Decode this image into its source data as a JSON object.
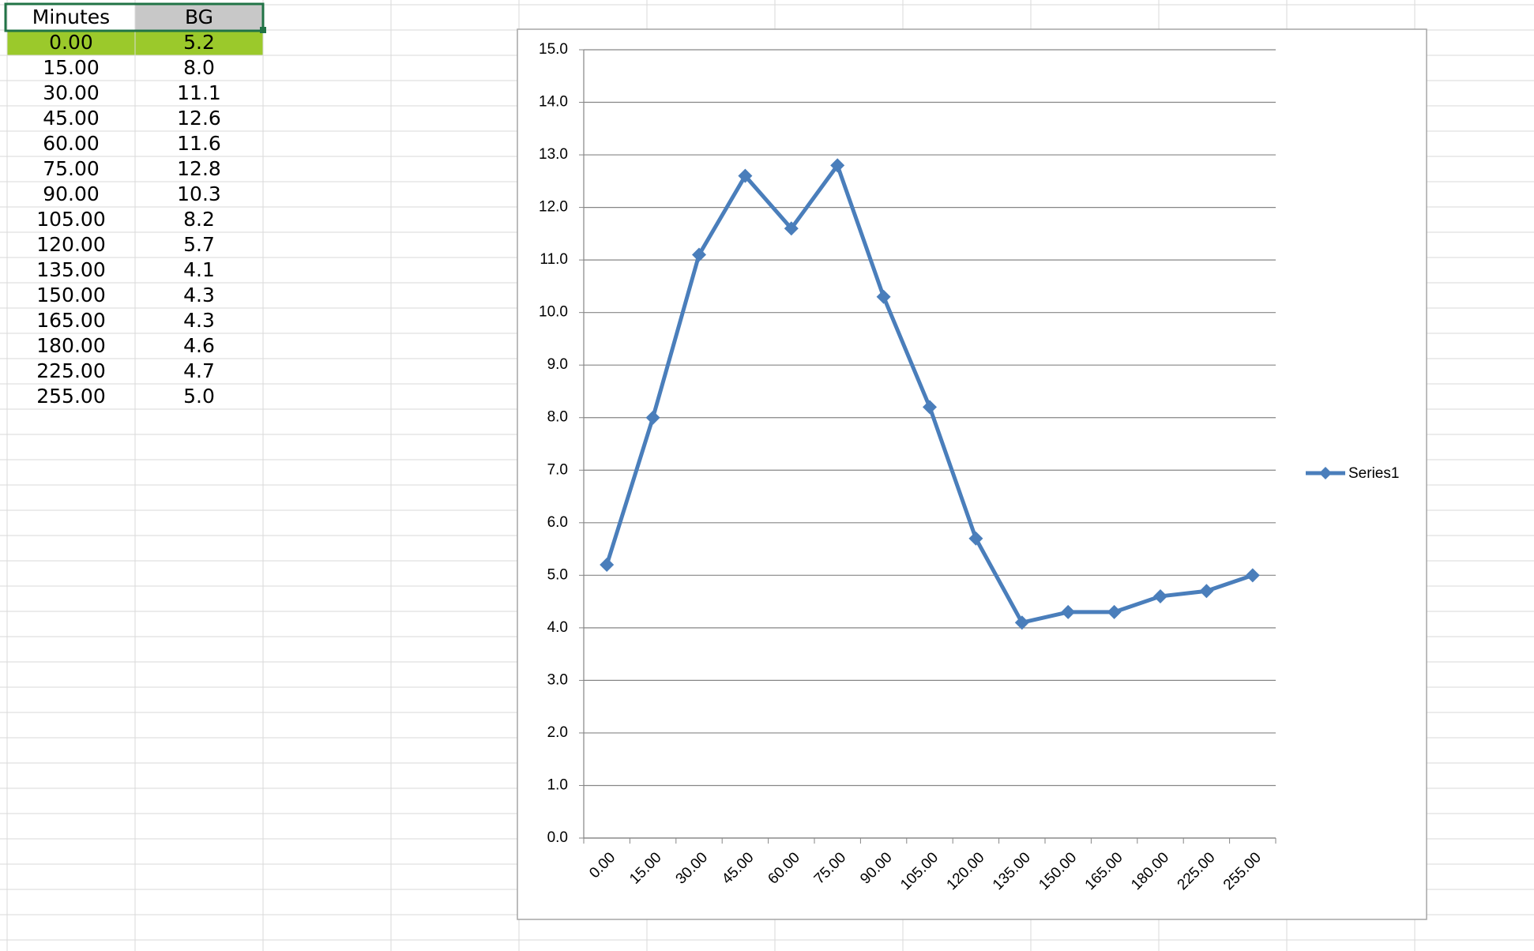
{
  "table": {
    "header": [
      "Minutes",
      "BG"
    ],
    "rows": [
      [
        "0.00",
        "5.2"
      ],
      [
        "15.00",
        "8.0"
      ],
      [
        "30.00",
        "11.1"
      ],
      [
        "45.00",
        "12.6"
      ],
      [
        "60.00",
        "11.6"
      ],
      [
        "75.00",
        "12.8"
      ],
      [
        "90.00",
        "10.3"
      ],
      [
        "105.00",
        "8.2"
      ],
      [
        "120.00",
        "5.7"
      ],
      [
        "135.00",
        "4.1"
      ],
      [
        "150.00",
        "4.3"
      ],
      [
        "165.00",
        "4.3"
      ],
      [
        "180.00",
        "4.6"
      ],
      [
        "225.00",
        "4.7"
      ],
      [
        "255.00",
        "5.0"
      ]
    ]
  },
  "chart_data": {
    "type": "line",
    "categories": [
      "0.00",
      "15.00",
      "30.00",
      "45.00",
      "60.00",
      "75.00",
      "90.00",
      "105.00",
      "120.00",
      "135.00",
      "150.00",
      "165.00",
      "180.00",
      "225.00",
      "255.00"
    ],
    "series": [
      {
        "name": "Series1",
        "color": "#4a7ebb",
        "values": [
          5.2,
          8.0,
          11.1,
          12.6,
          11.6,
          12.8,
          10.3,
          8.2,
          5.7,
          4.1,
          4.3,
          4.3,
          4.6,
          4.7,
          5.0
        ]
      }
    ],
    "ylim": [
      0,
      15
    ],
    "yticks": [
      {
        "value": 0,
        "label": "0.0"
      },
      {
        "value": 1,
        "label": "1.0"
      },
      {
        "value": 2,
        "label": "2.0"
      },
      {
        "value": 3,
        "label": "3.0"
      },
      {
        "value": 4,
        "label": "4.0"
      },
      {
        "value": 5,
        "label": "5.0"
      },
      {
        "value": 6,
        "label": "6.0"
      },
      {
        "value": 7,
        "label": "7.0"
      },
      {
        "value": 8,
        "label": "8.0"
      },
      {
        "value": 9,
        "label": "9.0"
      },
      {
        "value": 10,
        "label": "10.0"
      },
      {
        "value": 11,
        "label": "11.0"
      },
      {
        "value": 12,
        "label": "12.0"
      },
      {
        "value": 13,
        "label": "13.0"
      },
      {
        "value": 14,
        "label": "14.0"
      },
      {
        "value": 15,
        "label": "15.0"
      }
    ],
    "grid": true,
    "legend": "right"
  }
}
